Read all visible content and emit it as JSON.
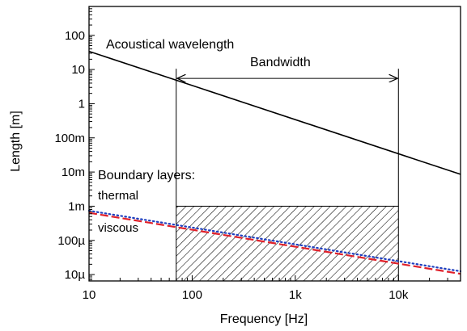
{
  "chart_data": {
    "type": "line",
    "xlabel": "Frequency [Hz]",
    "ylabel": "Length [m]",
    "xscale": "log",
    "yscale": "log",
    "xlim": [
      10,
      40000
    ],
    "ylim": [
      6.5e-06,
      700
    ],
    "grid": false,
    "legend": "none",
    "x_ticks": [
      {
        "value": 10,
        "label": "10"
      },
      {
        "value": 100,
        "label": "100"
      },
      {
        "value": 1000,
        "label": "1k"
      },
      {
        "value": 10000,
        "label": "10k"
      }
    ],
    "y_ticks": [
      {
        "value": 1e-05,
        "label": "10µ"
      },
      {
        "value": 0.0001,
        "label": "100µ"
      },
      {
        "value": 0.001,
        "label": "1m"
      },
      {
        "value": 0.01,
        "label": "10m"
      },
      {
        "value": 0.1,
        "label": "100m"
      },
      {
        "value": 1,
        "label": "1"
      },
      {
        "value": 10,
        "label": "10"
      },
      {
        "value": 100,
        "label": "100"
      }
    ],
    "series": [
      {
        "key": "wavelength",
        "color": "#000000",
        "dash": "solid",
        "x": [
          10,
          40000
        ],
        "y": [
          34,
          0.0086
        ]
      },
      {
        "key": "thermal",
        "color": "#1f3fbf",
        "dash": "dotted",
        "x": [
          10,
          40000
        ],
        "y": [
          0.00074,
          1.25e-05
        ]
      },
      {
        "key": "viscous",
        "color": "#e0202a",
        "dash": "dashed",
        "x": [
          10,
          40000
        ],
        "y": [
          0.00064,
          1.05e-05
        ]
      }
    ],
    "bandwidth": {
      "x": [
        70,
        10000
      ],
      "hatched_upper_y": 0.001,
      "arrow_y": 5.5
    },
    "annotations": {
      "wavelength": "Acoustical wavelength",
      "bandwidth": "Bandwidth",
      "boundary_layers": "Boundary layers:",
      "thermal": "thermal",
      "viscous": "viscous"
    }
  }
}
